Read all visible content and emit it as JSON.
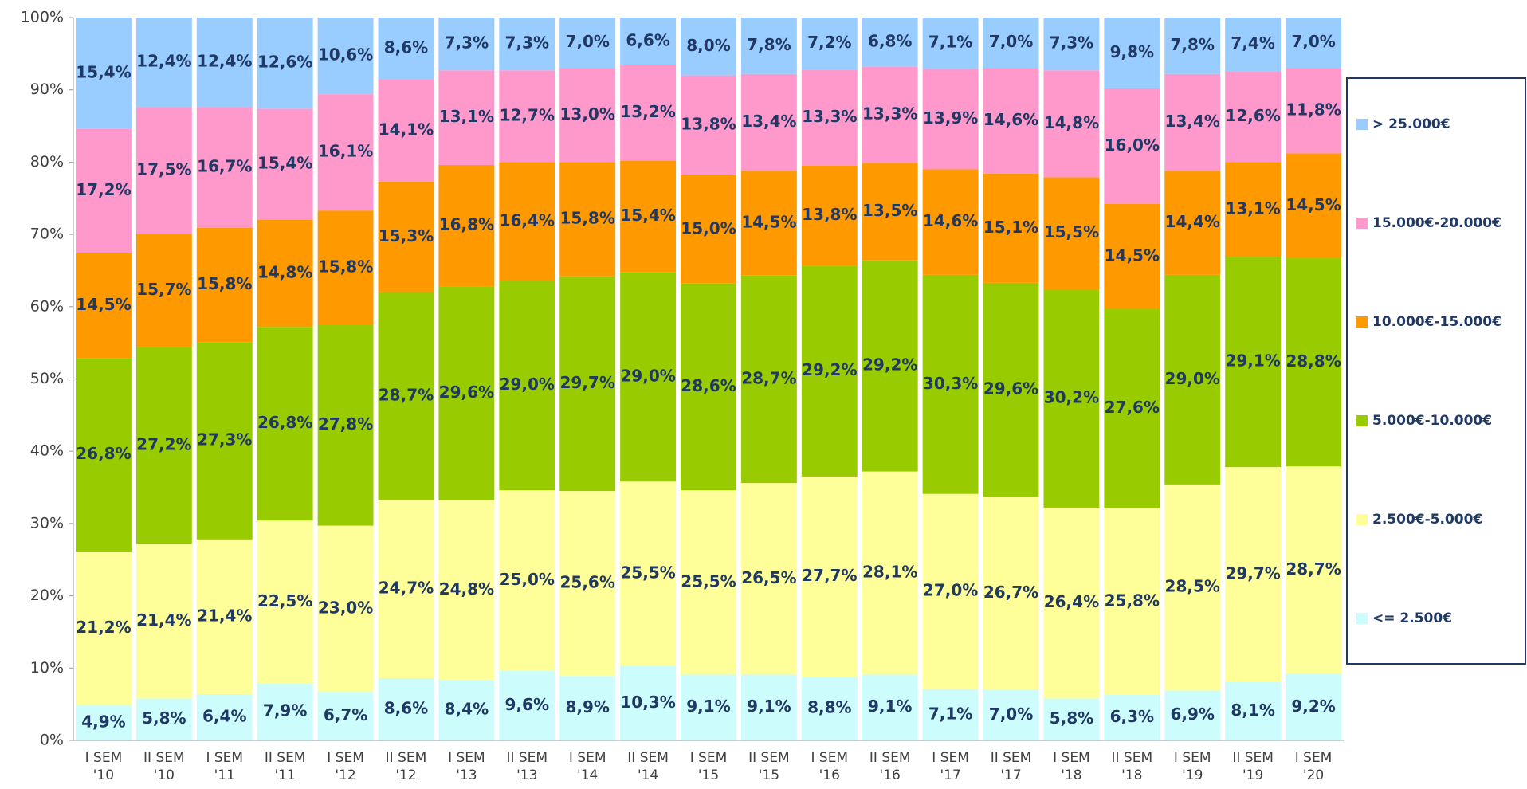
{
  "chart_data": {
    "type": "stacked_bar",
    "categories": [
      "I SEM '10",
      "II SEM '10",
      "I SEM '11",
      "II SEM '11",
      "I SEM '12",
      "II SEM '12",
      "I SEM '13",
      "II SEM '13",
      "I SEM '14",
      "II SEM '14",
      "I SEM '15",
      "II SEM '15",
      "I SEM '16",
      "II SEM '16",
      "I SEM '17",
      "II SEM '17",
      "I SEM '18",
      "II SEM '18",
      "I SEM '19",
      "II SEM '19",
      "I SEM '20"
    ],
    "series": [
      {
        "name": "<= 2.500€",
        "color": "#ccfcfc",
        "values": [
          4.9,
          5.8,
          6.4,
          7.9,
          6.7,
          8.6,
          8.4,
          9.6,
          8.9,
          10.3,
          9.1,
          9.1,
          8.8,
          9.1,
          7.1,
          7.0,
          5.8,
          6.3,
          6.9,
          8.1,
          9.2
        ],
        "value_labels": [
          "4,9%",
          "5,8%",
          "6,4%",
          "7,9%",
          "6,7%",
          "8,6%",
          "8,4%",
          "9,6%",
          "8,9%",
          "10,3%",
          "9,1%",
          "9,1%",
          "8,8%",
          "9,1%",
          "7,1%",
          "7,0%",
          "5,8%",
          "6,3%",
          "6,9%",
          "8,1%",
          "9,2%"
        ]
      },
      {
        "name": "2.500€-5.000€",
        "color": "#ffff99",
        "values": [
          21.2,
          21.4,
          21.4,
          22.5,
          23.0,
          24.7,
          24.8,
          25.0,
          25.6,
          25.5,
          25.5,
          26.5,
          27.7,
          28.1,
          27.0,
          26.7,
          26.4,
          25.8,
          28.5,
          29.7,
          28.7
        ],
        "value_labels": [
          "21,2%",
          "21,4%",
          "21,4%",
          "22,5%",
          "23,0%",
          "24,7%",
          "24,8%",
          "25,0%",
          "25,6%",
          "25,5%",
          "25,5%",
          "26,5%",
          "27,7%",
          "28,1%",
          "27,0%",
          "26,7%",
          "26,4%",
          "25,8%",
          "28,5%",
          "29,7%",
          "28,7%"
        ]
      },
      {
        "name": "5.000€-10.000€",
        "color": "#99cc00",
        "values": [
          26.8,
          27.2,
          27.3,
          26.8,
          27.8,
          28.7,
          29.6,
          29.0,
          29.7,
          29.0,
          28.6,
          28.7,
          29.2,
          29.2,
          30.3,
          29.6,
          30.2,
          27.6,
          29.0,
          29.1,
          28.8
        ],
        "value_labels": [
          "26,8%",
          "27,2%",
          "27,3%",
          "26,8%",
          "27,8%",
          "28,7%",
          "29,6%",
          "29,0%",
          "29,7%",
          "29,0%",
          "28,6%",
          "28,7%",
          "29,2%",
          "29,2%",
          "30,3%",
          "29,6%",
          "30,2%",
          "27,6%",
          "29,0%",
          "29,1%",
          "28,8%"
        ]
      },
      {
        "name": "10.000€-15.000€",
        "color": "#ff9900",
        "values": [
          14.5,
          15.7,
          15.8,
          14.8,
          15.8,
          15.3,
          16.8,
          16.4,
          15.8,
          15.4,
          15.0,
          14.5,
          13.8,
          13.5,
          14.6,
          15.1,
          15.5,
          14.5,
          14.4,
          13.1,
          14.5
        ],
        "value_labels": [
          "14,5%",
          "15,7%",
          "15,8%",
          "14,8%",
          "15,8%",
          "15,3%",
          "16,8%",
          "16,4%",
          "15,8%",
          "15,4%",
          "15,0%",
          "14,5%",
          "13,8%",
          "13,5%",
          "14,6%",
          "15,1%",
          "15,5%",
          "14,5%",
          "14,4%",
          "13,1%",
          "14,5%"
        ]
      },
      {
        "name": "15.000€-20.000€",
        "color": "#ff99cc",
        "values": [
          17.2,
          17.5,
          16.7,
          15.4,
          16.1,
          14.1,
          13.1,
          12.7,
          13.0,
          13.2,
          13.8,
          13.4,
          13.3,
          13.3,
          13.9,
          14.6,
          14.8,
          16.0,
          13.4,
          12.6,
          11.8
        ],
        "value_labels": [
          "17,2%",
          "17,5%",
          "16,7%",
          "15,4%",
          "16,1%",
          "14,1%",
          "13,1%",
          "12,7%",
          "13,0%",
          "13,2%",
          "13,8%",
          "13,4%",
          "13,3%",
          "13,3%",
          "13,9%",
          "14,6%",
          "14,8%",
          "16,0%",
          "13,4%",
          "12,6%",
          "11,8%"
        ]
      },
      {
        "name": "> 25.000€",
        "color": "#99ccff",
        "values": [
          15.4,
          12.4,
          12.4,
          12.6,
          10.6,
          8.6,
          7.3,
          7.3,
          7.0,
          6.6,
          8.0,
          7.8,
          7.2,
          6.8,
          7.1,
          7.0,
          7.3,
          9.8,
          7.8,
          7.4,
          7.0
        ],
        "value_labels": [
          "15,4%",
          "12,4%",
          "12,4%",
          "12,6%",
          "10,6%",
          "8,6%",
          "7,3%",
          "7,3%",
          "7,0%",
          "6,6%",
          "8,0%",
          "7,8%",
          "7,2%",
          "6,8%",
          "7,1%",
          "7,0%",
          "7,3%",
          "9,8%",
          "7,8%",
          "7,4%",
          "7,0%"
        ]
      }
    ],
    "ylim": [
      0,
      100
    ],
    "yticks": [
      {
        "value": 0,
        "label": "0%"
      },
      {
        "value": 10,
        "label": "10%"
      },
      {
        "value": 20,
        "label": "20%"
      },
      {
        "value": 30,
        "label": "30%"
      },
      {
        "value": 40,
        "label": "40%"
      },
      {
        "value": 50,
        "label": "50%"
      },
      {
        "value": 60,
        "label": "60%"
      },
      {
        "value": 70,
        "label": "70%"
      },
      {
        "value": 80,
        "label": "80%"
      },
      {
        "value": 90,
        "label": "90%"
      },
      {
        "value": 100,
        "label": "100%"
      }
    ],
    "legend": "right"
  }
}
